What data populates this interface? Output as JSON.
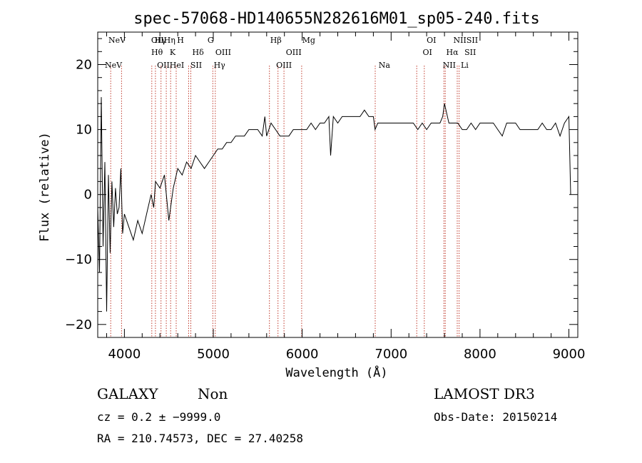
{
  "chart_data": {
    "type": "line",
    "title": "spec-57068-HD140655N282616M01_sp05-240.fits",
    "xlabel": "Wavelength (Å)",
    "ylabel": "Flux (relative)",
    "xlim": [
      3700,
      9100
    ],
    "ylim": [
      -22,
      25
    ],
    "xticks": [
      4000,
      5000,
      6000,
      7000,
      8000,
      9000
    ],
    "yticks": [
      -20,
      -10,
      0,
      10,
      20
    ],
    "grid": false,
    "series": [
      {
        "name": "",
        "x": [
          3700,
          3720,
          3740,
          3760,
          3780,
          3800,
          3820,
          3840,
          3860,
          3880,
          3900,
          3920,
          3940,
          3960,
          3980,
          4000,
          4050,
          4100,
          4150,
          4200,
          4250,
          4300,
          4330,
          4350,
          4400,
          4450,
          4500,
          4550,
          4600,
          4650,
          4700,
          4750,
          4800,
          4850,
          4900,
          4950,
          5000,
          5050,
          5100,
          5150,
          5200,
          5250,
          5300,
          5350,
          5400,
          5450,
          5500,
          5550,
          5580,
          5600,
          5650,
          5700,
          5750,
          5800,
          5850,
          5900,
          5950,
          6000,
          6050,
          6100,
          6150,
          6200,
          6250,
          6300,
          6320,
          6350,
          6400,
          6450,
          6500,
          6550,
          6600,
          6650,
          6700,
          6750,
          6800,
          6820,
          6850,
          6900,
          6950,
          7000,
          7050,
          7100,
          7150,
          7200,
          7250,
          7300,
          7350,
          7400,
          7450,
          7500,
          7550,
          7580,
          7600,
          7650,
          7700,
          7750,
          7800,
          7850,
          7900,
          7950,
          8000,
          8050,
          8100,
          8150,
          8200,
          8250,
          8300,
          8350,
          8400,
          8450,
          8500,
          8550,
          8600,
          8650,
          8700,
          8750,
          8800,
          8850,
          8900,
          8950,
          9000,
          9020
        ],
        "values": [
          -2,
          -12,
          15,
          -8,
          5,
          -18,
          3,
          -9,
          2,
          -5,
          1,
          -3,
          -2,
          4,
          -6,
          -3,
          -5,
          -7,
          -4,
          -6,
          -3,
          0,
          -2,
          2,
          1,
          3,
          -4,
          1,
          4,
          3,
          5,
          4,
          6,
          5,
          4,
          5,
          6,
          7,
          7,
          8,
          8,
          9,
          9,
          9,
          10,
          10,
          10,
          9,
          12,
          9,
          11,
          10,
          9,
          9,
          9,
          10,
          10,
          10,
          10,
          11,
          10,
          11,
          11,
          12,
          6,
          12,
          11,
          12,
          12,
          12,
          12,
          12,
          13,
          12,
          12,
          10,
          11,
          11,
          11,
          11,
          11,
          11,
          11,
          11,
          11,
          10,
          11,
          10,
          11,
          11,
          11,
          12,
          14,
          11,
          11,
          11,
          10,
          10,
          11,
          10,
          11,
          11,
          11,
          11,
          10,
          9,
          11,
          11,
          11,
          10,
          10,
          10,
          10,
          10,
          11,
          10,
          10,
          11,
          9,
          11,
          12,
          0
        ]
      }
    ],
    "line_labels": {
      "top": [
        {
          "x": 3820,
          "label": "NeV"
        },
        {
          "x": 4301,
          "label": "OIIHη"
        },
        {
          "x": 4340,
          "label": "Hγ"
        },
        {
          "x": 4592,
          "label": "H"
        },
        {
          "x": 4935,
          "label": "G"
        },
        {
          "x": 5640,
          "label": "Hβ"
        },
        {
          "x": 6000,
          "label": "Mg"
        },
        {
          "x": 7400,
          "label": "OI"
        },
        {
          "x": 7700,
          "label": "NIISII"
        }
      ],
      "mid": [
        {
          "x": 4302,
          "label": "Hθ"
        },
        {
          "x": 4510,
          "label": "K"
        },
        {
          "x": 4763,
          "label": "Hδ"
        },
        {
          "x": 5023,
          "label": "OIII"
        },
        {
          "x": 5816,
          "label": "OIII"
        },
        {
          "x": 7355,
          "label": "OI"
        },
        {
          "x": 7620,
          "label": "Hα"
        },
        {
          "x": 7825,
          "label": "SII"
        }
      ],
      "low": [
        {
          "x": 3780,
          "label": "NeV"
        },
        {
          "x": 4367,
          "label": "OIIHeI"
        },
        {
          "x": 4742,
          "label": "SII"
        },
        {
          "x": 5005,
          "label": "Hγ"
        },
        {
          "x": 5707,
          "label": "OIII"
        },
        {
          "x": 6860,
          "label": "Na"
        },
        {
          "x": 7580,
          "label": "NII"
        },
        {
          "x": 7784,
          "label": "Li"
        }
      ],
      "marker_lines": [
        3846,
        3968,
        4308,
        4349,
        4412,
        4471,
        4520,
        4583,
        4723,
        4747,
        4995,
        5022,
        5631,
        5728,
        5795,
        5994,
        6821,
        7288,
        7373,
        7594,
        7609,
        7744,
        7765
      ]
    }
  },
  "footer": {
    "class_label": "GALAXY",
    "subclass_label": "Non",
    "redshift_text": "cz = 0.2 ± −9999.0",
    "coords_text": "RA = 210.74573, DEC =  27.40258",
    "survey_label": "LAMOST DR3",
    "obs_date_text": "Obs-Date: 20150214"
  }
}
